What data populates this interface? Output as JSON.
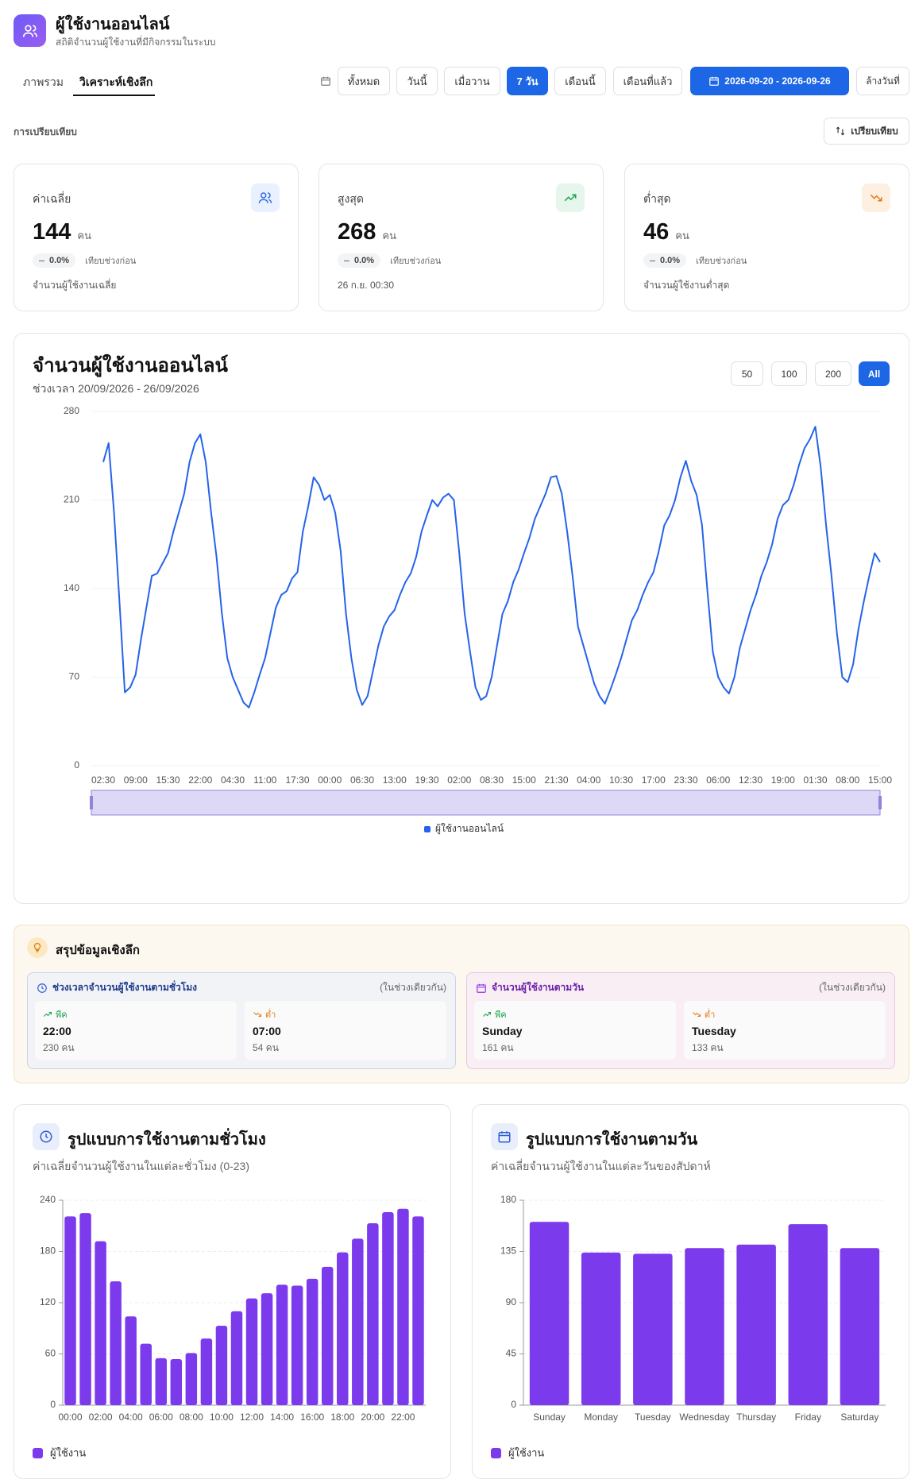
{
  "header": {
    "title": "ผู้ใช้งานออนไลน์",
    "subtitle": "สถิติจำนวนผู้ใช้งานที่มีกิจกรรมในระบบ"
  },
  "tabs": {
    "items": [
      "ภาพรวม",
      "วิเคราะห์เชิงลึก"
    ],
    "active": 1
  },
  "filters": {
    "options": [
      "ทั้งหมด",
      "วันนี้",
      "เมื่อวาน",
      "7 วัน",
      "เดือนนี้",
      "เดือนที่แล้ว"
    ],
    "active": 3,
    "date_range": "2026-09-20 - 2026-09-26",
    "clear": "ล้างวันที่"
  },
  "compare": {
    "label": "การเปรียบเทียบ",
    "button": "เปรียบเทียบ"
  },
  "stats": [
    {
      "label": "ค่าเฉลี่ย",
      "value": 144,
      "unit": "คน",
      "change": "0.0%",
      "change_note": "เทียบช่วงก่อน",
      "desc": "จำนวนผู้ใช้งานเฉลี่ย"
    },
    {
      "label": "สูงสุด",
      "value": 268,
      "unit": "คน",
      "change": "0.0%",
      "change_note": "เทียบช่วงก่อน",
      "desc": "26 ก.ย. 00:30"
    },
    {
      "label": "ต่ำสุด",
      "value": 46,
      "unit": "คน",
      "change": "0.0%",
      "change_note": "เทียบช่วงก่อน",
      "desc": "จำนวนผู้ใช้งานต่ำสุด"
    }
  ],
  "range_options": {
    "items": [
      "50",
      "100",
      "200",
      "All"
    ],
    "active": 3
  },
  "chart_data": [
    {
      "type": "line",
      "title": "จำนวนผู้ใช้งานออนไลน์",
      "subtitle": "ช่วงเวลา 20/09/2026 - 26/09/2026",
      "categories": [
        "02:30",
        null,
        null,
        null,
        null,
        null,
        "09:00",
        null,
        null,
        null,
        null,
        null,
        "15:30",
        null,
        null,
        null,
        null,
        null,
        "22:00",
        null,
        null,
        null,
        null,
        null,
        "04:30",
        null,
        null,
        null,
        null,
        null,
        "11:00",
        null,
        null,
        null,
        null,
        null,
        "17:30",
        null,
        null,
        null,
        null,
        null,
        "00:00",
        null,
        null,
        null,
        null,
        null,
        "06:30",
        null,
        null,
        null,
        null,
        null,
        "13:00",
        null,
        null,
        null,
        null,
        null,
        "19:30",
        null,
        null,
        null,
        null,
        null,
        "02:00",
        null,
        null,
        null,
        null,
        null,
        "08:30",
        null,
        null,
        null,
        null,
        null,
        "15:00",
        null,
        null,
        null,
        null,
        null,
        "21:30",
        null,
        null,
        null,
        null,
        null,
        "04:00",
        null,
        null,
        null,
        null,
        null,
        "10:30",
        null,
        null,
        null,
        null,
        null,
        "17:00",
        null,
        null,
        null,
        null,
        null,
        "23:30",
        null,
        null,
        null,
        null,
        null,
        "06:00",
        null,
        null,
        null,
        null,
        null,
        "12:30",
        null,
        null,
        null,
        null,
        null,
        "19:00",
        null,
        null,
        null,
        null,
        null,
        "01:30",
        null,
        null,
        null,
        null,
        null,
        "08:00",
        null,
        null,
        null,
        null,
        null,
        "15:00"
      ],
      "series": [
        {
          "name": "ผู้ใช้งานออนไลน์",
          "color": "#2563eb",
          "values": [
            240,
            255,
            200,
            130,
            58,
            62,
            72,
            100,
            125,
            150,
            152,
            160,
            168,
            185,
            200,
            215,
            240,
            255,
            262,
            240,
            200,
            165,
            120,
            85,
            70,
            60,
            50,
            46,
            58,
            72,
            85,
            105,
            125,
            135,
            138,
            148,
            153,
            185,
            205,
            228,
            222,
            210,
            214,
            200,
            170,
            120,
            85,
            60,
            48,
            55,
            75,
            95,
            110,
            118,
            123,
            135,
            145,
            152,
            165,
            185,
            198,
            210,
            205,
            212,
            215,
            210,
            168,
            120,
            90,
            62,
            52,
            55,
            70,
            95,
            120,
            130,
            145,
            155,
            168,
            180,
            195,
            205,
            215,
            228,
            229,
            215,
            185,
            150,
            110,
            95,
            80,
            65,
            55,
            49,
            60,
            72,
            85,
            100,
            115,
            123,
            135,
            145,
            153,
            170,
            190,
            198,
            210,
            228,
            241,
            225,
            214,
            190,
            138,
            90,
            70,
            62,
            57,
            70,
            93,
            108,
            123,
            135,
            150,
            161,
            175,
            195,
            206,
            210,
            222,
            238,
            251,
            258,
            268,
            236,
            190,
            150,
            105,
            70,
            66,
            80,
            108,
            130,
            150,
            168,
            161
          ]
        }
      ],
      "ylim": [
        0,
        280
      ],
      "yticks": [
        0,
        70,
        140,
        210,
        280
      ],
      "grid": true
    },
    {
      "type": "bar",
      "title": "รูปแบบการใช้งานตามชั่วโมง",
      "subtitle": "ค่าเฉลี่ยจำนวนผู้ใช้งานในแต่ละชั่วโมง (0-23)",
      "categories": [
        "00:00",
        null,
        "02:00",
        null,
        "04:00",
        null,
        "06:00",
        null,
        "08:00",
        null,
        "10:00",
        null,
        "12:00",
        null,
        "14:00",
        null,
        "16:00",
        null,
        "18:00",
        null,
        "20:00",
        null,
        "22:00",
        null
      ],
      "series": [
        {
          "name": "ผู้ใช้งาน",
          "color": "#7c3aed",
          "values": [
            221,
            225,
            192,
            145,
            104,
            72,
            55,
            54,
            61,
            78,
            93,
            110,
            125,
            131,
            141,
            140,
            148,
            162,
            179,
            195,
            213,
            226,
            230,
            221
          ]
        }
      ],
      "ylim": [
        0,
        240
      ],
      "yticks": [
        0,
        60,
        120,
        180,
        240
      ],
      "grid": true
    },
    {
      "type": "bar",
      "title": "รูปแบบการใช้งานตามวัน",
      "subtitle": "ค่าเฉลี่ยจำนวนผู้ใช้งานในแต่ละวันของสัปดาห์",
      "categories": [
        "Sunday",
        "Monday",
        "Tuesday",
        "Wednesday",
        "Thursday",
        "Friday",
        "Saturday"
      ],
      "series": [
        {
          "name": "ผู้ใช้งาน",
          "color": "#7c3aed",
          "values": [
            161,
            134,
            133,
            138,
            141,
            159,
            138
          ]
        }
      ],
      "ylim": [
        0,
        180
      ],
      "yticks": [
        0,
        45,
        90,
        135,
        180
      ],
      "grid": true
    }
  ],
  "insights": {
    "title": "สรุปข้อมูลเชิงลึก",
    "panels": [
      {
        "title": "ช่วงเวลาจำนวนผู้ใช้งานตามชั่วโมง",
        "note": "(ในช่วงเดียวกัน)",
        "items": [
          {
            "label": "พีค",
            "value": "22:00",
            "count": "230 คน"
          },
          {
            "label": "ต่ำ",
            "value": "07:00",
            "count": "54 คน"
          }
        ]
      },
      {
        "title": "จำนวนผู้ใช้งานตามวัน",
        "note": "(ในช่วงเดียวกัน)",
        "items": [
          {
            "label": "พีค",
            "value": "Sunday",
            "count": "161 คน"
          },
          {
            "label": "ต่ำ",
            "value": "Tuesday",
            "count": "133 คน"
          }
        ]
      }
    ]
  }
}
